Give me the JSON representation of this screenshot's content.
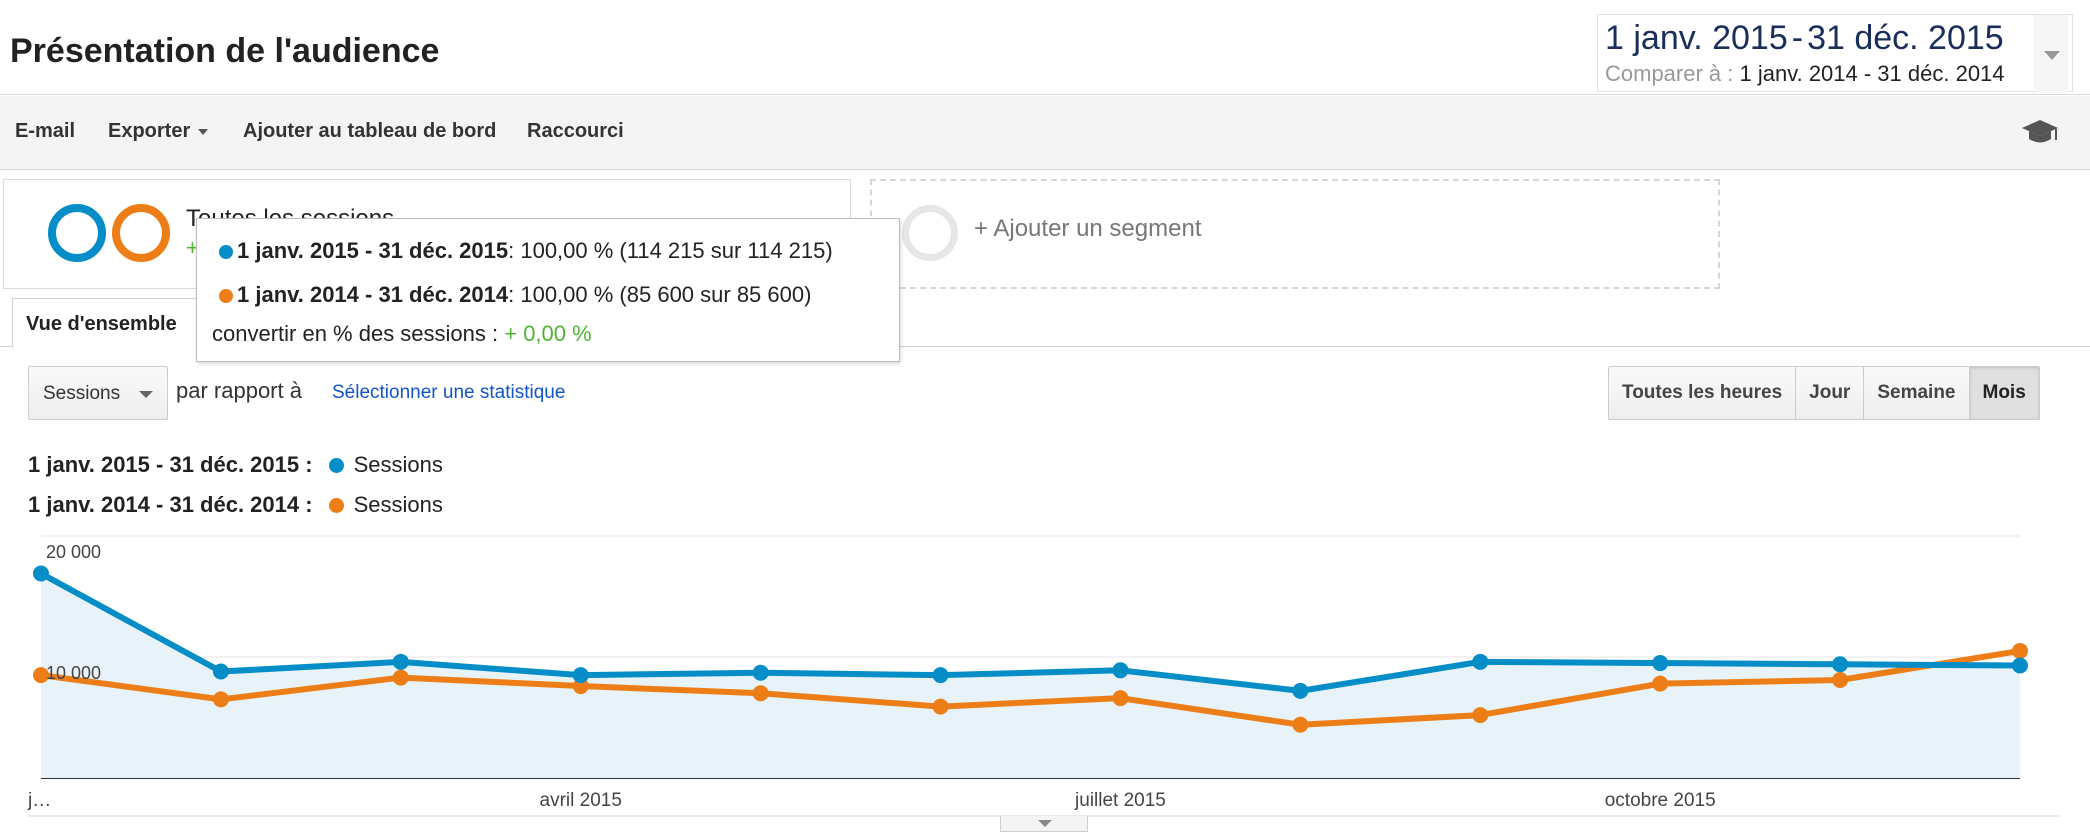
{
  "header": {
    "title": "Présentation de l'audience",
    "date_range": {
      "start": "1 janv. 2015",
      "sep": "-",
      "end": "31 déc. 2015"
    },
    "compare_label": "Comparer à :",
    "compare_range": "1 janv. 2014 - 31 déc. 2014"
  },
  "toolbar": {
    "email": "E-mail",
    "export": "Exporter",
    "add_dashboard": "Ajouter au tableau de bord",
    "shortcut": "Raccourci",
    "help_icon": "graduation-cap-icon"
  },
  "segments": {
    "active_name": "Toutes les sessions",
    "active_sub": "+",
    "add_label": "+ Ajouter un segment"
  },
  "tabs": {
    "overview": "Vue d'ensemble"
  },
  "tooltip": {
    "row1_period": "1 janv. 2015 - 31 déc. 2015",
    "row1_value": ": 100,00 % (114 215 sur 114 215)",
    "row2_period": "1 janv. 2014 - 31 déc. 2014",
    "row2_value": ": 100,00 % (85 600 sur 85 600)",
    "row3_label": "convertir en % des sessions : ",
    "row3_value": "+ 0,00 %"
  },
  "controls": {
    "metric": "Sessions",
    "compare_text": "par rapport à",
    "select_stat": "Sélectionner une statistique",
    "ranges": [
      "Toutes les heures",
      "Jour",
      "Semaine",
      "Mois"
    ],
    "active_range": "Mois"
  },
  "legend": [
    {
      "period": "1 janv. 2015 - 31 déc. 2015 :",
      "metric": "Sessions"
    },
    {
      "period": "1 janv. 2014 - 31 déc. 2014 :",
      "metric": "Sessions"
    }
  ],
  "colors": {
    "primary": "#058dc7",
    "compare": "#ed7e17",
    "link": "#1155cc",
    "positive": "#50b432"
  },
  "chart_data": {
    "type": "line",
    "x": [
      "2015-01",
      "2015-02",
      "2015-03",
      "2015-04",
      "2015-05",
      "2015-06",
      "2015-07",
      "2015-08",
      "2015-09",
      "2015-10",
      "2015-11",
      "2015-12"
    ],
    "series": [
      {
        "name": "Sessions",
        "period": "1 janv. 2015 - 31 déc. 2015",
        "color": "#058dc7",
        "values": [
          16900,
          8800,
          9600,
          8500,
          8700,
          8500,
          8900,
          7200,
          9600,
          9500,
          9400,
          9300
        ]
      },
      {
        "name": "Sessions",
        "period": "1 janv. 2014 - 31 déc. 2014",
        "color": "#ed7e17",
        "values": [
          8500,
          6500,
          8300,
          7600,
          7000,
          5900,
          6600,
          4400,
          5200,
          7800,
          8100,
          10500
        ]
      }
    ],
    "y_ticks": [
      {
        "value": 20000,
        "label": "20 000"
      },
      {
        "value": 10000,
        "label": "10 000"
      }
    ],
    "x_ticks": [
      {
        "index": 0,
        "label": "j…"
      },
      {
        "index": 3,
        "label": "avril 2015"
      },
      {
        "index": 6,
        "label": "juillet 2015"
      },
      {
        "index": 9,
        "label": "octobre 2015"
      }
    ],
    "ylim": [
      0,
      20000
    ],
    "grid": true,
    "area_fill_primary": true
  }
}
